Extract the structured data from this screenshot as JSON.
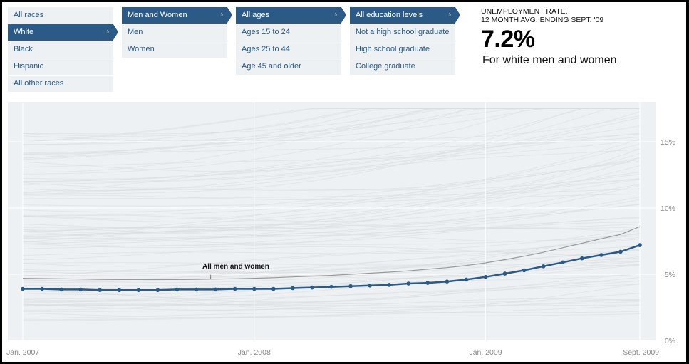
{
  "filters": {
    "race": {
      "items": [
        {
          "label": "All races",
          "active": false
        },
        {
          "label": "White",
          "active": true
        },
        {
          "label": "Black",
          "active": false
        },
        {
          "label": "Hispanic",
          "active": false
        },
        {
          "label": "All other races",
          "active": false
        }
      ]
    },
    "sex": {
      "items": [
        {
          "label": "Men and Women",
          "active": true
        },
        {
          "label": "Men",
          "active": false
        },
        {
          "label": "Women",
          "active": false
        }
      ]
    },
    "age": {
      "items": [
        {
          "label": "All ages",
          "active": true
        },
        {
          "label": "Ages 15 to 24",
          "active": false
        },
        {
          "label": "Ages 25 to 44",
          "active": false
        },
        {
          "label": "Age 45 and older",
          "active": false
        }
      ]
    },
    "education": {
      "items": [
        {
          "label": "All education levels",
          "active": true
        },
        {
          "label": "Not a high school graduate",
          "active": false
        },
        {
          "label": "High school graduate",
          "active": false
        },
        {
          "label": "College graduate",
          "active": false
        }
      ]
    },
    "chevron_glyph": "›"
  },
  "stat": {
    "label_line1": "UNEMPLOYMENT RATE,",
    "label_line2": "12 MONTH AVG. ENDING SEPT. '09",
    "value": "7.2%",
    "description": "For white men and women"
  },
  "colors": {
    "accent": "#2a5a85",
    "menu_bg": "#eef1f3",
    "chart_bg": "#eef1f3",
    "reference_line": "#999999",
    "background_lines": "#d9dcde"
  },
  "chart_data": {
    "type": "line",
    "title": "",
    "xlabel": "",
    "ylabel": "",
    "x_tick_labels": [
      "Jan. 2007",
      "Jan. 2008",
      "Jan. 2009",
      "Sept. 2009"
    ],
    "x_tick_month_index": [
      0,
      12,
      24,
      32
    ],
    "y_tick_labels": [
      "0%",
      "5%",
      "10%",
      "15%"
    ],
    "y_ticks": [
      0,
      5,
      10,
      15
    ],
    "ylim": [
      0,
      18
    ],
    "grid": true,
    "annotation": "All men and women",
    "series": [
      {
        "name": "White men and women",
        "highlighted": true,
        "values": [
          3.9,
          3.9,
          3.85,
          3.85,
          3.8,
          3.8,
          3.8,
          3.8,
          3.85,
          3.85,
          3.85,
          3.9,
          3.9,
          3.9,
          3.95,
          4.0,
          4.05,
          4.1,
          4.15,
          4.2,
          4.3,
          4.35,
          4.45,
          4.6,
          4.8,
          5.05,
          5.3,
          5.6,
          5.9,
          6.2,
          6.45,
          6.7,
          7.2
        ]
      },
      {
        "name": "All men and women",
        "highlighted": false,
        "values": [
          4.7,
          4.68,
          4.66,
          4.64,
          4.62,
          4.6,
          4.6,
          4.6,
          4.6,
          4.62,
          4.64,
          4.66,
          4.7,
          4.74,
          4.8,
          4.86,
          4.92,
          5.0,
          5.08,
          5.16,
          5.26,
          5.38,
          5.5,
          5.66,
          5.86,
          6.1,
          6.36,
          6.66,
          7.0,
          7.34,
          7.68,
          8.0,
          8.6
        ]
      }
    ]
  }
}
